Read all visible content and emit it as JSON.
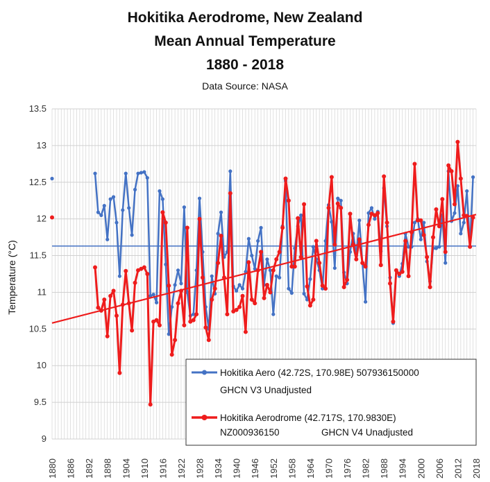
{
  "title_lines": [
    "Hokitika Aerodrome, New Zealand",
    "Mean Annual Temperature",
    "1880 - 2018"
  ],
  "source": "Data Source: NASA",
  "ylabel": "Temperature (°C)",
  "chart_data": {
    "type": "line",
    "xlim": [
      1880,
      2018
    ],
    "ylim": [
      9,
      13.5
    ],
    "y_ticks": [
      "9",
      "9.5",
      "10",
      "10.5",
      "11",
      "11.5",
      "12",
      "12.5",
      "13",
      "13.5"
    ],
    "x_ticks": [
      "1880",
      "1886",
      "1892",
      "1898",
      "1904",
      "1910",
      "1916",
      "1922",
      "1928",
      "1934",
      "1940",
      "1946",
      "1952",
      "1958",
      "1964",
      "1970",
      "1976",
      "1982",
      "1988",
      "1994",
      "2000",
      "2006",
      "2012",
      "2018"
    ],
    "reference_line": {
      "y": 11.63,
      "color": "#4472c4"
    },
    "trend_line": {
      "x": [
        1880,
        2018
      ],
      "y": [
        10.58,
        12.06
      ],
      "color": "#ee1c1c"
    },
    "series": [
      {
        "name": "Hokitika Aero (42.72S, 170.98E) 507936150000",
        "name_line2": "GHCN V3 Unadjusted",
        "color": "#4472c4",
        "points": [
          [
            1880,
            12.55
          ],
          [
            1894,
            12.62
          ],
          [
            1895,
            12.09
          ],
          [
            1896,
            12.05
          ],
          [
            1897,
            12.18
          ],
          [
            1898,
            11.72
          ],
          [
            1899,
            12.27
          ],
          [
            1900,
            12.3
          ],
          [
            1901,
            11.95
          ],
          [
            1902,
            11.22
          ],
          [
            1903,
            12.12
          ],
          [
            1904,
            12.62
          ],
          [
            1905,
            12.15
          ],
          [
            1906,
            11.78
          ],
          [
            1907,
            12.4
          ],
          [
            1908,
            12.62
          ],
          [
            1909,
            12.63
          ],
          [
            1910,
            12.64
          ],
          [
            1911,
            12.56
          ],
          [
            1912,
            10.95
          ],
          [
            1913,
            10.97
          ],
          [
            1914,
            10.86
          ],
          [
            1915,
            12.38
          ],
          [
            1916,
            12.27
          ],
          [
            1917,
            11.38
          ],
          [
            1918,
            10.43
          ],
          [
            1919,
            10.8
          ],
          [
            1920,
            11.1
          ],
          [
            1921,
            11.3
          ],
          [
            1922,
            11.12
          ],
          [
            1923,
            12.16
          ],
          [
            1924,
            11.0
          ],
          [
            1925,
            10.68
          ],
          [
            1926,
            10.7
          ],
          [
            1927,
            11.3
          ],
          [
            1928,
            12.28
          ],
          [
            1929,
            11.55
          ],
          [
            1930,
            10.8
          ],
          [
            1931,
            10.5
          ],
          [
            1932,
            11.22
          ],
          [
            1933,
            10.98
          ],
          [
            1934,
            11.8
          ],
          [
            1935,
            12.09
          ],
          [
            1936,
            11.48
          ],
          [
            1937,
            11.55
          ],
          [
            1938,
            12.65
          ],
          [
            1939,
            11.08
          ],
          [
            1940,
            11.02
          ],
          [
            1941,
            11.1
          ],
          [
            1942,
            11.05
          ],
          [
            1943,
            11.28
          ],
          [
            1944,
            11.73
          ],
          [
            1945,
            11.5
          ],
          [
            1946,
            11.32
          ],
          [
            1947,
            11.7
          ],
          [
            1948,
            11.88
          ],
          [
            1949,
            11.1
          ],
          [
            1950,
            11.45
          ],
          [
            1951,
            11.3
          ],
          [
            1952,
            10.7
          ],
          [
            1953,
            11.22
          ],
          [
            1954,
            11.2
          ],
          [
            1955,
            11.9
          ],
          [
            1956,
            12.52
          ],
          [
            1957,
            11.05
          ],
          [
            1958,
            10.99
          ],
          [
            1959,
            11.6
          ],
          [
            1960,
            11.9
          ],
          [
            1961,
            12.05
          ],
          [
            1962,
            10.98
          ],
          [
            1963,
            10.9
          ],
          [
            1964,
            11.18
          ],
          [
            1965,
            11.62
          ],
          [
            1966,
            11.45
          ],
          [
            1967,
            11.3
          ],
          [
            1968,
            11.05
          ],
          [
            1969,
            11.7
          ],
          [
            1970,
            12.19
          ],
          [
            1971,
            11.96
          ],
          [
            1972,
            11.33
          ],
          [
            1973,
            12.28
          ],
          [
            1974,
            12.25
          ],
          [
            1975,
            11.27
          ],
          [
            1976,
            11.12
          ],
          [
            1977,
            11.55
          ],
          [
            1978,
            11.8
          ],
          [
            1979,
            11.5
          ],
          [
            1980,
            11.98
          ],
          [
            1981,
            11.4
          ],
          [
            1982,
            10.87
          ],
          [
            1983,
            12.08
          ],
          [
            1984,
            12.15
          ],
          [
            1985,
            12.0
          ],
          [
            1986,
            12.1
          ],
          [
            1987,
            11.56
          ],
          [
            1988,
            12.42
          ],
          [
            1989,
            11.9
          ],
          [
            1990,
            11.2
          ],
          [
            1991,
            10.58
          ],
          [
            1992,
            11.3
          ],
          [
            1993,
            11.22
          ],
          [
            1994,
            11.39
          ],
          [
            1995,
            11.8
          ],
          [
            1996,
            11.62
          ],
          [
            1997,
            11.62
          ],
          [
            1998,
            11.95
          ],
          [
            1999,
            12.0
          ],
          [
            2000,
            11.72
          ],
          [
            2001,
            11.95
          ],
          [
            2002,
            11.42
          ],
          [
            2003,
            11.15
          ],
          [
            2004,
            11.6
          ],
          [
            2005,
            11.6
          ],
          [
            2006,
            11.62
          ],
          [
            2007,
            12.05
          ],
          [
            2008,
            11.4
          ],
          [
            2009,
            12.65
          ],
          [
            2010,
            11.97
          ],
          [
            2011,
            12.08
          ],
          [
            2012,
            12.45
          ],
          [
            2013,
            11.8
          ],
          [
            2014,
            11.95
          ],
          [
            2015,
            12.38
          ],
          [
            2016,
            11.62
          ],
          [
            2017,
            12.57
          ]
        ]
      },
      {
        "name": "Hokitika Aerodrome (42.717S, 170.9830E)",
        "name_line2a": "NZ000936150",
        "name_line2b": "GHCN V4 Unadjusted",
        "color": "#ee1c1c",
        "points": [
          [
            1880,
            12.02
          ],
          [
            1894,
            11.34
          ],
          [
            1895,
            10.79
          ],
          [
            1896,
            10.75
          ],
          [
            1897,
            10.9
          ],
          [
            1898,
            10.4
          ],
          [
            1899,
            10.95
          ],
          [
            1900,
            11.02
          ],
          [
            1901,
            10.68
          ],
          [
            1902,
            9.9
          ],
          [
            1903,
            10.83
          ],
          [
            1904,
            11.29
          ],
          [
            1905,
            10.85
          ],
          [
            1906,
            10.48
          ],
          [
            1907,
            11.13
          ],
          [
            1908,
            11.3
          ],
          [
            1909,
            11.32
          ],
          [
            1910,
            11.34
          ],
          [
            1911,
            11.25
          ],
          [
            1912,
            9.47
          ],
          [
            1913,
            10.6
          ],
          [
            1914,
            10.62
          ],
          [
            1915,
            10.55
          ],
          [
            1916,
            12.09
          ],
          [
            1917,
            11.95
          ],
          [
            1918,
            11.09
          ],
          [
            1919,
            10.15
          ],
          [
            1920,
            10.35
          ],
          [
            1921,
            10.85
          ],
          [
            1922,
            11.02
          ],
          [
            1923,
            10.55
          ],
          [
            1924,
            11.88
          ],
          [
            1925,
            10.6
          ],
          [
            1926,
            10.62
          ],
          [
            1927,
            10.7
          ],
          [
            1928,
            12.0
          ],
          [
            1929,
            11.2
          ],
          [
            1930,
            10.52
          ],
          [
            1931,
            10.35
          ],
          [
            1932,
            10.9
          ],
          [
            1933,
            11.05
          ],
          [
            1934,
            11.4
          ],
          [
            1935,
            11.77
          ],
          [
            1936,
            11.2
          ],
          [
            1937,
            10.7
          ],
          [
            1938,
            12.35
          ],
          [
            1939,
            10.74
          ],
          [
            1940,
            10.76
          ],
          [
            1941,
            10.8
          ],
          [
            1942,
            10.95
          ],
          [
            1943,
            10.46
          ],
          [
            1944,
            11.41
          ],
          [
            1945,
            10.9
          ],
          [
            1946,
            10.85
          ],
          [
            1947,
            11.3
          ],
          [
            1948,
            11.55
          ],
          [
            1949,
            10.92
          ],
          [
            1950,
            11.1
          ],
          [
            1951,
            11.0
          ],
          [
            1952,
            11.3
          ],
          [
            1953,
            11.45
          ],
          [
            1954,
            11.55
          ],
          [
            1955,
            11.88
          ],
          [
            1956,
            12.55
          ],
          [
            1957,
            12.25
          ],
          [
            1958,
            11.35
          ],
          [
            1959,
            11.35
          ],
          [
            1960,
            12.01
          ],
          [
            1961,
            11.48
          ],
          [
            1962,
            12.2
          ],
          [
            1963,
            11.08
          ],
          [
            1964,
            10.82
          ],
          [
            1965,
            10.9
          ],
          [
            1966,
            11.7
          ],
          [
            1967,
            11.4
          ],
          [
            1968,
            11.09
          ],
          [
            1969,
            11.05
          ],
          [
            1970,
            12.15
          ],
          [
            1971,
            12.57
          ],
          [
            1972,
            11.65
          ],
          [
            1973,
            12.21
          ],
          [
            1974,
            12.15
          ],
          [
            1975,
            11.07
          ],
          [
            1976,
            11.17
          ],
          [
            1977,
            12.07
          ],
          [
            1978,
            11.65
          ],
          [
            1979,
            11.45
          ],
          [
            1980,
            11.72
          ],
          [
            1981,
            11.4
          ],
          [
            1982,
            11.35
          ],
          [
            1983,
            11.92
          ],
          [
            1984,
            12.07
          ],
          [
            1985,
            12.05
          ],
          [
            1986,
            12.08
          ],
          [
            1987,
            11.37
          ],
          [
            1988,
            12.58
          ],
          [
            1989,
            11.95
          ],
          [
            1990,
            11.12
          ],
          [
            1991,
            10.6
          ],
          [
            1992,
            11.3
          ],
          [
            1993,
            11.25
          ],
          [
            1994,
            11.28
          ],
          [
            1995,
            11.7
          ],
          [
            1996,
            11.22
          ],
          [
            1997,
            11.82
          ],
          [
            1998,
            12.75
          ],
          [
            1999,
            11.98
          ],
          [
            2000,
            11.98
          ],
          [
            2001,
            11.78
          ],
          [
            2002,
            11.48
          ],
          [
            2003,
            11.07
          ],
          [
            2004,
            11.75
          ],
          [
            2005,
            12.13
          ],
          [
            2006,
            11.9
          ],
          [
            2007,
            12.27
          ],
          [
            2008,
            11.55
          ],
          [
            2009,
            12.73
          ],
          [
            2010,
            12.65
          ],
          [
            2011,
            12.2
          ],
          [
            2012,
            13.05
          ],
          [
            2013,
            12.55
          ],
          [
            2014,
            12.05
          ],
          [
            2015,
            12.04
          ],
          [
            2016,
            11.62
          ],
          [
            2017,
            12.02
          ]
        ]
      }
    ],
    "grid": true,
    "legend_placement": "bottom-right"
  }
}
